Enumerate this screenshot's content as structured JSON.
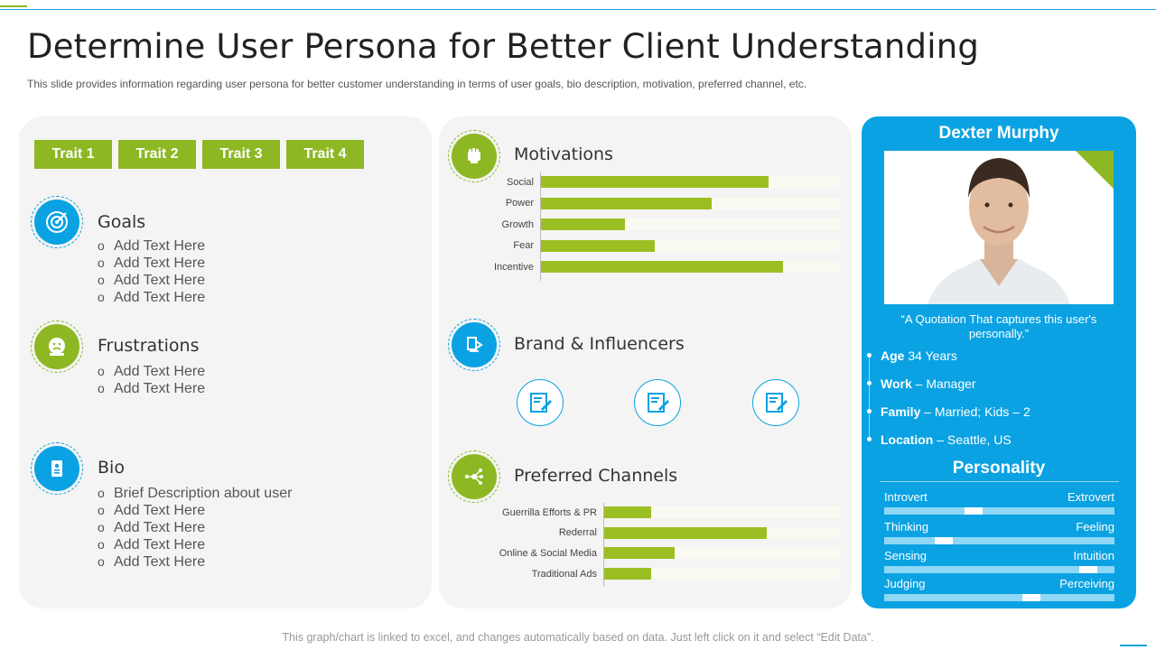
{
  "page": {
    "title": "Determine User Persona for Better Client Understanding",
    "subtitle": "This slide provides information regarding user persona for better customer understanding in terms of user goals, bio description, motivation, preferred channel, etc.",
    "footer": "This graph/chart is linked to excel, and changes automatically based on data. Just left click on it and select “Edit Data”."
  },
  "colors": {
    "accent_green": "#8db824",
    "accent_blue": "#0aa2e2",
    "panel_gray": "#f4f4f4"
  },
  "traits": [
    "Trait 1",
    "Trait 2",
    "Trait 3",
    "Trait 4"
  ],
  "goals": {
    "title": "Goals",
    "icon": "target-icon",
    "items": [
      "Add Text Here",
      "Add Text Here",
      "Add Text Here",
      "Add Text Here"
    ]
  },
  "frustrations": {
    "title": "Frustrations",
    "icon": "frustrated-face-icon",
    "items": [
      "Add Text Here",
      "Add Text Here"
    ]
  },
  "bio": {
    "title": "Bio",
    "icon": "id-card-icon",
    "items": [
      "Brief Description about user",
      "Add Text Here",
      "Add Text Here",
      "Add Text Here",
      "Add Text Here"
    ]
  },
  "motivations": {
    "title": "Motivations",
    "icon": "fist-icon",
    "chart_data": {
      "type": "bar",
      "orientation": "horizontal",
      "categories": [
        "Social",
        "Power",
        "Growth",
        "Fear",
        "Incentive"
      ],
      "values": [
        76,
        57,
        28,
        38,
        81
      ],
      "xlim": [
        0,
        100
      ]
    }
  },
  "brand": {
    "title": "Brand & Influencers",
    "icon": "brand-icon",
    "items": [
      "signature-document-icon",
      "signature-document-icon",
      "signature-document-icon"
    ]
  },
  "channels": {
    "title": "Preferred Channels",
    "icon": "network-icon",
    "chart_data": {
      "type": "bar",
      "orientation": "horizontal",
      "categories": [
        "Guerrilla Efforts & PR",
        "Rederral",
        "Online & Social Media",
        "Traditional Ads"
      ],
      "values": [
        20,
        69,
        30,
        20
      ],
      "xlim": [
        0,
        100
      ]
    }
  },
  "persona": {
    "name": "Dexter Murphy",
    "quote": "“A Quotation That captures this user's personally.”",
    "facts": [
      {
        "label": "Age",
        "value": " 34 Years"
      },
      {
        "label": "Work",
        "value": " – Manager"
      },
      {
        "label": "Family",
        "value": " – Married; Kids – 2"
      },
      {
        "label": "Location",
        "value": " – Seattle, US"
      }
    ],
    "personality_title": "Personality",
    "personality": [
      {
        "left": "Introvert",
        "right": "Extrovert",
        "level": 0.38
      },
      {
        "left": "Thinking",
        "right": "Feeling",
        "level": 0.24
      },
      {
        "left": "Sensing",
        "right": "Intuition",
        "level": 0.92
      },
      {
        "left": "Judging",
        "right": "Perceiving",
        "level": 0.65
      }
    ]
  }
}
